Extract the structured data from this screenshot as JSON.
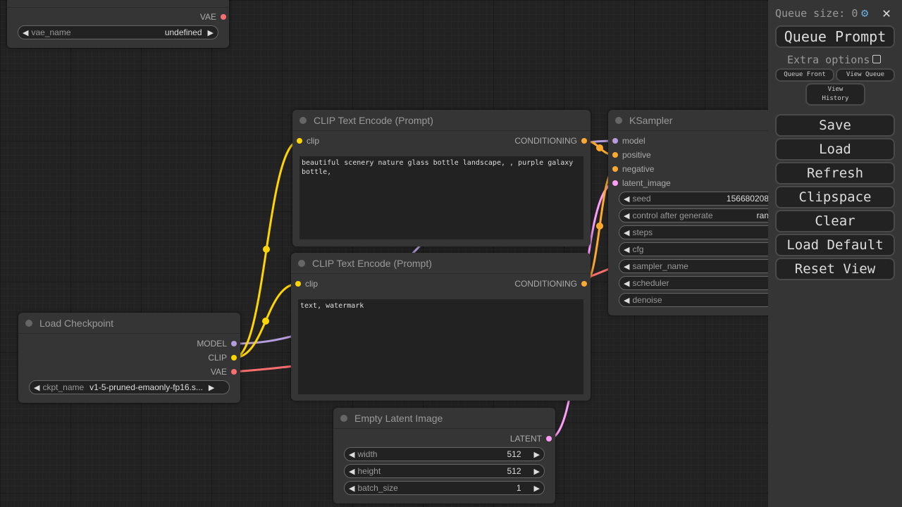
{
  "colors": {
    "clip": "#ffd500",
    "model": "#b39ddb",
    "vae": "#ff6e6e",
    "conditioning": "#ffa931",
    "latent": "#ff9cf9"
  },
  "nodes": {
    "vae_node": {
      "output": "VAE",
      "widget": {
        "label": "vae_name",
        "value": "undefined"
      }
    },
    "clip_pos": {
      "title": "CLIP Text Encode (Prompt)",
      "input": "clip",
      "output": "CONDITIONING",
      "text": "beautiful scenery nature glass bottle landscape, , purple galaxy bottle,"
    },
    "clip_neg": {
      "title": "CLIP Text Encode (Prompt)",
      "input": "clip",
      "output": "CONDITIONING",
      "text": "text, watermark"
    },
    "checkpoint": {
      "title": "Load Checkpoint",
      "outputs": [
        "MODEL",
        "CLIP",
        "VAE"
      ],
      "widget": {
        "label": "ckpt_name",
        "value": "v1-5-pruned-emaonly-fp16.s..."
      }
    },
    "latent": {
      "title": "Empty Latent Image",
      "output": "LATENT",
      "widgets": [
        {
          "label": "width",
          "value": "512"
        },
        {
          "label": "height",
          "value": "512"
        },
        {
          "label": "batch_size",
          "value": "1"
        }
      ]
    },
    "ksampler": {
      "title": "KSampler",
      "inputs": [
        "model",
        "positive",
        "negative",
        "latent_image"
      ],
      "widgets": [
        {
          "label": "seed",
          "value": "156680208"
        },
        {
          "label": "control after generate",
          "value": "ran"
        },
        {
          "label": "steps",
          "value": ""
        },
        {
          "label": "cfg",
          "value": ""
        },
        {
          "label": "sampler_name",
          "value": ""
        },
        {
          "label": "scheduler",
          "value": ""
        },
        {
          "label": "denoise",
          "value": ""
        }
      ]
    }
  },
  "panel": {
    "queue_size": "Queue size: 0",
    "queue_prompt": "Queue Prompt",
    "extra_options": "Extra options",
    "queue_front": "Queue Front",
    "view_queue": "View Queue",
    "view_history": "View History",
    "buttons": [
      "Save",
      "Load",
      "Refresh",
      "Clipspace",
      "Clear",
      "Load Default",
      "Reset View"
    ]
  }
}
